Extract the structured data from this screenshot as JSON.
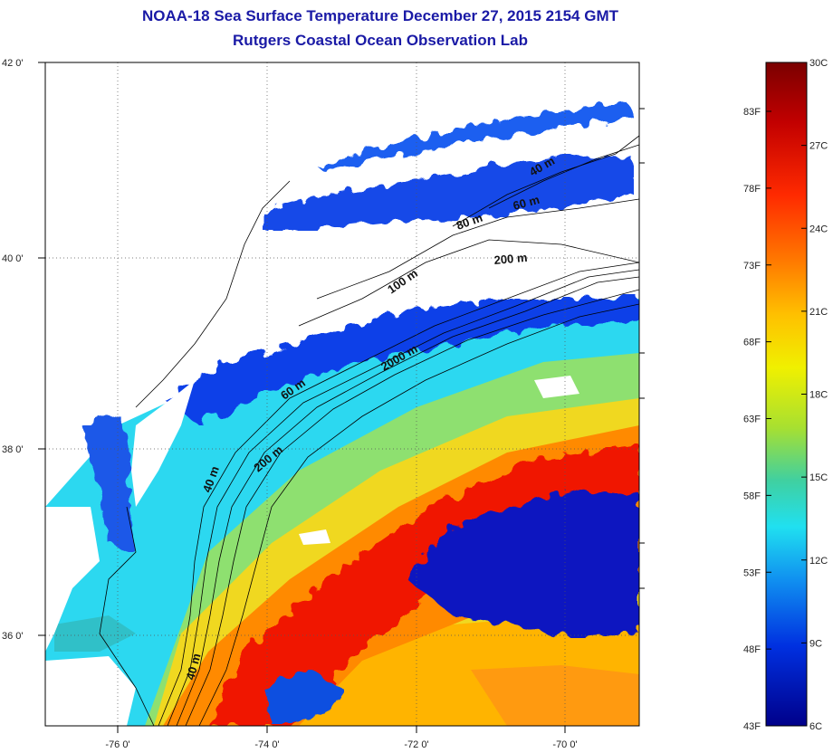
{
  "title": "NOAA-18 Sea Surface Temperature December 27, 2015 2154 GMT",
  "subtitle": "Rutgers Coastal Ocean Observation Lab",
  "map": {
    "lon_ticks": [
      "-76 0'",
      "-74 0'",
      "-72 0'",
      "-70 0'"
    ],
    "lat_ticks": [
      "42 0'",
      "40 0'",
      "38 0'",
      "36 0'"
    ],
    "isobath_labels": [
      "40 m",
      "60 m",
      "80 m",
      "200 m",
      "100 m",
      "2000 m",
      "60 m",
      "200 m",
      "40 m",
      "40 m"
    ]
  },
  "colorbar": {
    "fahrenheit_labels": [
      "83F",
      "78F",
      "73F",
      "68F",
      "63F",
      "58F",
      "53F",
      "48F",
      "43F"
    ],
    "celsius_labels": [
      "30C",
      "27C",
      "24C",
      "21C",
      "18C",
      "15C",
      "12C",
      "9C",
      "6C"
    ],
    "colors": [
      "#7a0000",
      "#c20000",
      "#ff2a00",
      "#ff7a00",
      "#ffc000",
      "#f0f000",
      "#a8e030",
      "#40d0a0",
      "#20e0f0",
      "#1090f0",
      "#0030e0",
      "#00008a"
    ]
  }
}
